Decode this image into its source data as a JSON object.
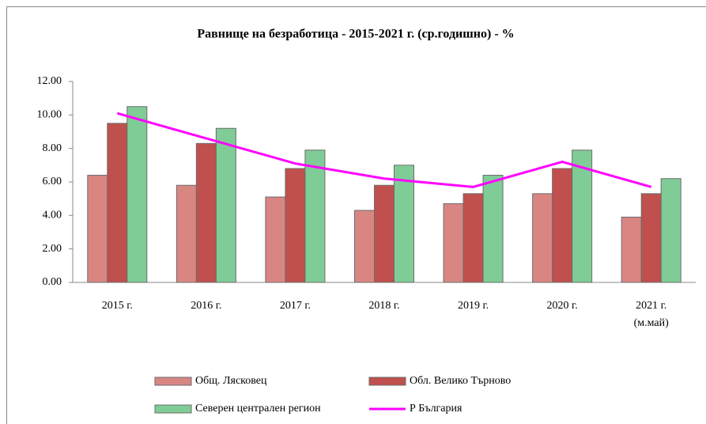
{
  "chart_data": {
    "type": "bar_line",
    "title": "Равнище на безработица - 2015-2021 г. (ср.годишно) - %",
    "categories": [
      "2015 г.",
      "2016 г.",
      "2017 г.",
      "2018 г.",
      "2019 г.",
      "2020 г.",
      "2021 г.\n(м.май)"
    ],
    "series": [
      {
        "name": "Общ. Лясковец",
        "type": "bar",
        "color": "#d98683",
        "values": [
          6.4,
          5.8,
          5.1,
          4.3,
          4.7,
          5.3,
          3.9
        ]
      },
      {
        "name": "Обл. Велико Търново",
        "type": "bar",
        "color": "#c0504d",
        "values": [
          9.5,
          8.3,
          6.8,
          5.8,
          5.3,
          6.8,
          5.3
        ]
      },
      {
        "name": "Северен централен регион",
        "type": "bar",
        "color": "#80cc96",
        "values": [
          10.5,
          9.2,
          7.9,
          7.0,
          6.4,
          7.9,
          6.2
        ]
      },
      {
        "name": "Р България",
        "type": "line",
        "color": "#ff00ff",
        "values": [
          10.1,
          8.6,
          7.1,
          6.2,
          5.7,
          7.2,
          5.7
        ]
      }
    ],
    "ylim": [
      0,
      12
    ],
    "yticks": [
      {
        "value": 0,
        "label": "0.00"
      },
      {
        "value": 2,
        "label": "2.00"
      },
      {
        "value": 4,
        "label": "4.00"
      },
      {
        "value": 6,
        "label": "6.00"
      },
      {
        "value": 8,
        "label": "8.00"
      },
      {
        "value": 10,
        "label": "10.00"
      },
      {
        "value": 12,
        "label": "12.00"
      }
    ],
    "grid": false,
    "legend": "bottom"
  }
}
